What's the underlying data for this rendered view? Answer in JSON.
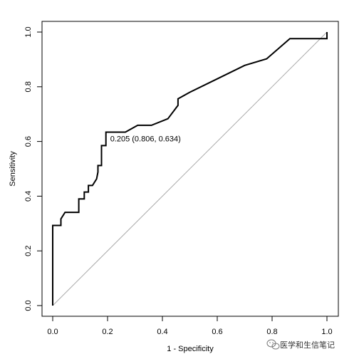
{
  "chart_data": {
    "type": "line",
    "title": "",
    "xlabel": "1 - Specificity",
    "ylabel": "Sensitivity",
    "xlim": [
      0,
      1
    ],
    "ylim": [
      0,
      1
    ],
    "x_ticks": [
      "0.0",
      "0.2",
      "0.4",
      "0.6",
      "0.8",
      "1.0"
    ],
    "y_ticks": [
      "0.0",
      "0.2",
      "0.4",
      "0.6",
      "0.8",
      "1.0"
    ],
    "grid": false,
    "legend": "none",
    "series": [
      {
        "color": "#000000",
        "points": [
          [
            0.0,
            0.0
          ],
          [
            0.0,
            0.293
          ],
          [
            0.03,
            0.293
          ],
          [
            0.03,
            0.317
          ],
          [
            0.045,
            0.341
          ],
          [
            0.095,
            0.341
          ],
          [
            0.095,
            0.39
          ],
          [
            0.115,
            0.39
          ],
          [
            0.115,
            0.415
          ],
          [
            0.13,
            0.415
          ],
          [
            0.13,
            0.439
          ],
          [
            0.145,
            0.439
          ],
          [
            0.16,
            0.463
          ],
          [
            0.165,
            0.488
          ],
          [
            0.165,
            0.512
          ],
          [
            0.178,
            0.512
          ],
          [
            0.178,
            0.585
          ],
          [
            0.194,
            0.585
          ],
          [
            0.194,
            0.634
          ],
          [
            0.265,
            0.634
          ],
          [
            0.31,
            0.659
          ],
          [
            0.36,
            0.659
          ],
          [
            0.42,
            0.683
          ],
          [
            0.457,
            0.732
          ],
          [
            0.457,
            0.756
          ],
          [
            0.5,
            0.78
          ],
          [
            0.6,
            0.829
          ],
          [
            0.7,
            0.878
          ],
          [
            0.78,
            0.902
          ],
          [
            0.865,
            0.976
          ],
          [
            0.98,
            0.976
          ],
          [
            0.98,
            0.976
          ],
          [
            1.0,
            0.976
          ],
          [
            1.0,
            1.0
          ]
        ]
      }
    ],
    "reference_line": {
      "from": [
        0,
        0
      ],
      "to": [
        1,
        1
      ],
      "color": "#aaaaaa"
    },
    "threshold": {
      "x": 0.194,
      "y": 0.634,
      "label": "0.205 (0.806, 0.634)"
    }
  },
  "watermark": {
    "text": "医学和生信笔记",
    "icon": "wechat-icon"
  }
}
